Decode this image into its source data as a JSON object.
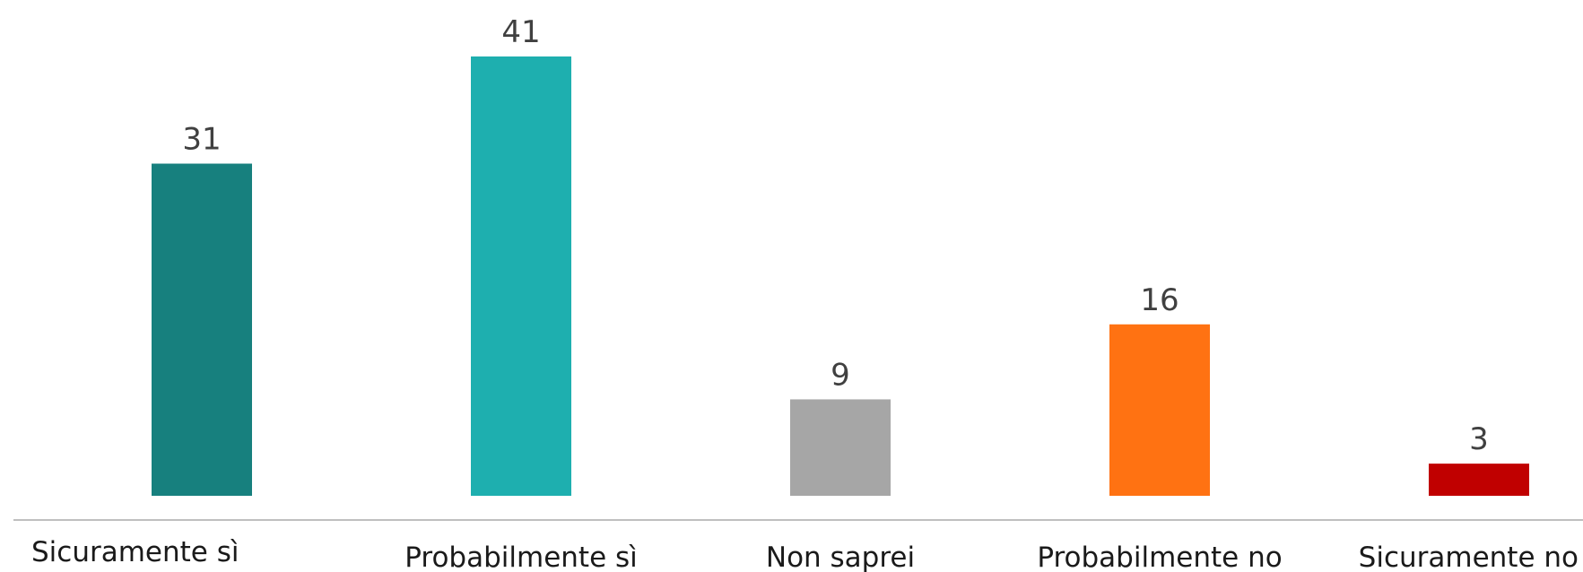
{
  "chart_data": {
    "type": "bar",
    "categories": [
      "Sicuramente sì",
      "Probabilmente sì",
      "Non saprei",
      "Probabilmente no",
      "Sicuramente no"
    ],
    "values": [
      31,
      41,
      9,
      16,
      3
    ],
    "colors": [
      "#17807E",
      "#1EAFAF",
      "#A6A6A6",
      "#FF7212",
      "#C00000"
    ],
    "axis_color": "#BFBFBF",
    "title": "",
    "xlabel": "",
    "ylabel": "",
    "ylim": [
      0,
      41
    ],
    "grid": false,
    "legend": "none"
  }
}
